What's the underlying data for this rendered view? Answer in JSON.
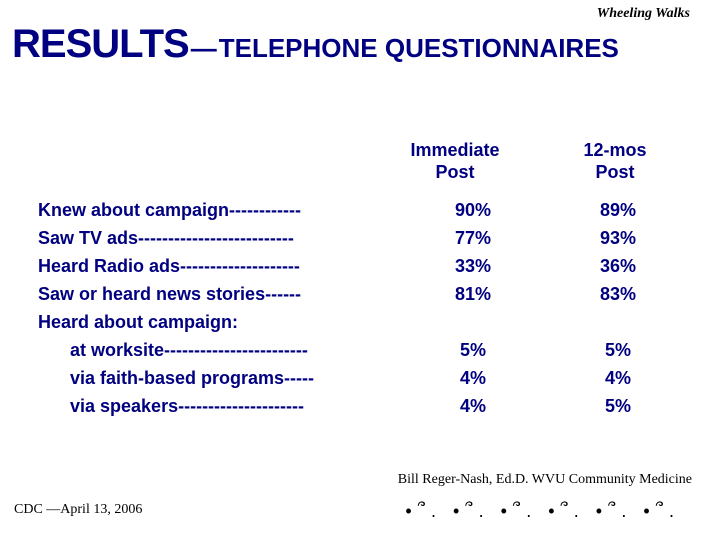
{
  "brand": "Wheeling Walks",
  "title": {
    "big": "RESULTS",
    "dash": "—",
    "sub": "TELEPHONE QUESTIONNAIRES"
  },
  "columns": {
    "c1_line1": "Immediate",
    "c1_line2": "Post",
    "c2_line1": "12-mos",
    "c2_line2": "Post"
  },
  "rows": [
    {
      "label": "Knew about campaign------------",
      "v1": "90%",
      "v2": "89%",
      "indent": false
    },
    {
      "label": "Saw TV ads--------------------------",
      "v1": "77%",
      "v2": "93%",
      "indent": false
    },
    {
      "label": "Heard Radio ads--------------------",
      "v1": "33%",
      "v2": "36%",
      "indent": false
    },
    {
      "label": "Saw or heard news stories------",
      "v1": "81%",
      "v2": "83%",
      "indent": false
    },
    {
      "label": "Heard about campaign:",
      "v1": "",
      "v2": "",
      "indent": false
    },
    {
      "label": "at worksite------------------------",
      "v1": "5%",
      "v2": "5%",
      "indent": true
    },
    {
      "label": "via faith-based programs-----",
      "v1": "4%",
      "v2": "4%",
      "indent": true
    },
    {
      "label": "via speakers---------------------",
      "v1": "4%",
      "v2": "5%",
      "indent": true
    }
  ],
  "credit": "Bill Reger-Nash, Ed.D.  WVU Community Medicine",
  "footer_left": "CDC —April 13, 2006",
  "footprints": "•՞. •՞. •՞. •՞. •՞. •՞.",
  "colors": {
    "text": "#000080",
    "brand_text": "#000000",
    "background": "#ffffff"
  },
  "typography": {
    "title_big_pt": 40,
    "title_sub_pt": 26,
    "body_pt": 18,
    "small_pt": 14
  }
}
